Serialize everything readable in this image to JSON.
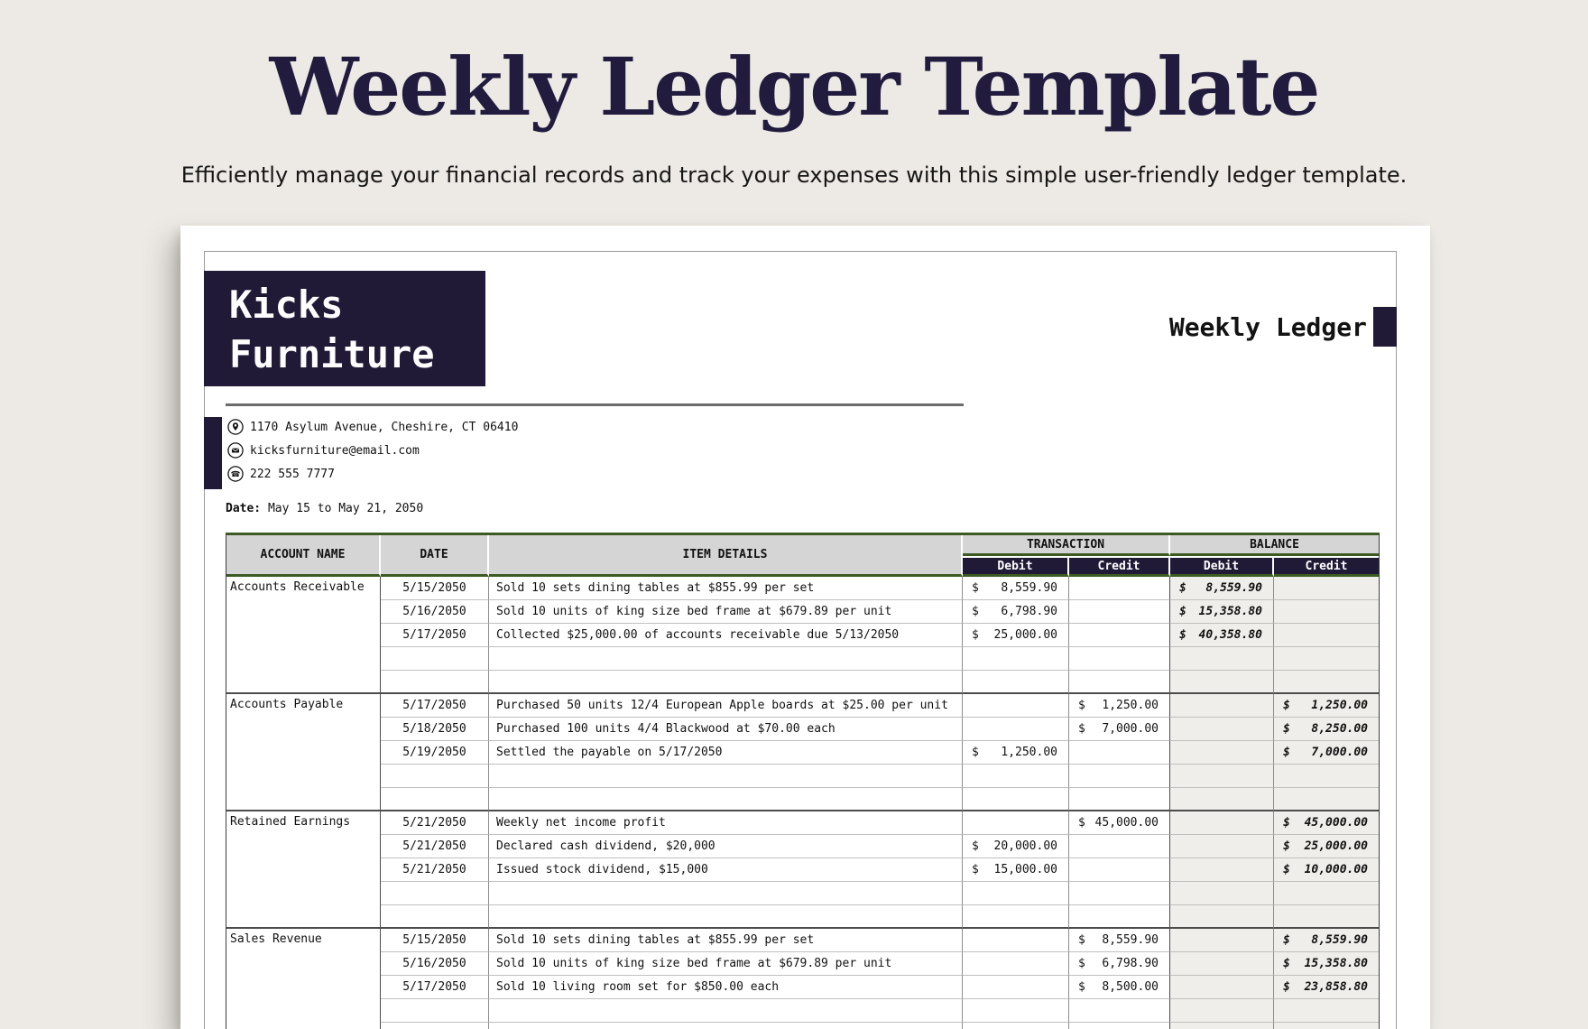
{
  "page": {
    "title": "Weekly Ledger Template",
    "subtitle": "Efficiently manage your financial records and track your expenses with this simple user-friendly ledger template."
  },
  "company": {
    "name_line1": "Kicks",
    "name_line2": "Furniture",
    "doc_label": "Weekly Ledger",
    "address": "1170 Asylum Avenue, Cheshire, CT 06410",
    "email": "kicksfurniture@email.com",
    "phone": "222 555 7777"
  },
  "date_line": {
    "label": "Date:",
    "value": "May 15 to May 21, 2050"
  },
  "colors": {
    "navy": "#201a37",
    "title_navy": "#211b3e",
    "header_gray": "#d5d5d5",
    "table_green": "#3b5b23",
    "balance_gray": "#f0eeea",
    "background": "#edeae5"
  },
  "table": {
    "currency": "$",
    "headers": {
      "account": "ACCOUNT NAME",
      "date": "DATE",
      "item": "ITEM DETAILS",
      "transaction": "TRANSACTION",
      "balance": "BALANCE",
      "debit": "Debit",
      "credit": "Credit"
    },
    "blocks": [
      {
        "account": "Accounts Receivable",
        "rows": [
          {
            "date": "5/15/2050",
            "item": "Sold 10 sets dining tables at $855.99 per set",
            "t_debit": "8,559.90",
            "t_credit": "",
            "b_debit": "8,559.90",
            "b_credit": ""
          },
          {
            "date": "5/16/2050",
            "item": "Sold 10 units of king size bed frame at $679.89 per unit",
            "t_debit": "6,798.90",
            "t_credit": "",
            "b_debit": "15,358.80",
            "b_credit": ""
          },
          {
            "date": "5/17/2050",
            "item": "Collected $25,000.00 of accounts receivable due 5/13/2050",
            "t_debit": "25,000.00",
            "t_credit": "",
            "b_debit": "40,358.80",
            "b_credit": ""
          },
          {
            "date": "",
            "item": "",
            "t_debit": "",
            "t_credit": "",
            "b_debit": "",
            "b_credit": ""
          },
          {
            "date": "",
            "item": "",
            "t_debit": "",
            "t_credit": "",
            "b_debit": "",
            "b_credit": ""
          }
        ]
      },
      {
        "account": "Accounts Payable",
        "rows": [
          {
            "date": "5/17/2050",
            "item": "Purchased 50 units 12/4 European Apple boards at $25.00 per unit",
            "t_debit": "",
            "t_credit": "1,250.00",
            "b_debit": "",
            "b_credit": "1,250.00"
          },
          {
            "date": "5/18/2050",
            "item": "Purchased 100 units 4/4 Blackwood at $70.00 each",
            "t_debit": "",
            "t_credit": "7,000.00",
            "b_debit": "",
            "b_credit": "8,250.00"
          },
          {
            "date": "5/19/2050",
            "item": "Settled the payable on 5/17/2050",
            "t_debit": "1,250.00",
            "t_credit": "",
            "b_debit": "",
            "b_credit": "7,000.00"
          },
          {
            "date": "",
            "item": "",
            "t_debit": "",
            "t_credit": "",
            "b_debit": "",
            "b_credit": ""
          },
          {
            "date": "",
            "item": "",
            "t_debit": "",
            "t_credit": "",
            "b_debit": "",
            "b_credit": ""
          }
        ]
      },
      {
        "account": "Retained Earnings",
        "rows": [
          {
            "date": "5/21/2050",
            "item": "Weekly net income profit",
            "t_debit": "",
            "t_credit": "45,000.00",
            "b_debit": "",
            "b_credit": "45,000.00"
          },
          {
            "date": "5/21/2050",
            "item": "Declared cash dividend, $20,000",
            "t_debit": "20,000.00",
            "t_credit": "",
            "b_debit": "",
            "b_credit": "25,000.00"
          },
          {
            "date": "5/21/2050",
            "item": "Issued stock dividend, $15,000",
            "t_debit": "15,000.00",
            "t_credit": "",
            "b_debit": "",
            "b_credit": "10,000.00"
          },
          {
            "date": "",
            "item": "",
            "t_debit": "",
            "t_credit": "",
            "b_debit": "",
            "b_credit": ""
          },
          {
            "date": "",
            "item": "",
            "t_debit": "",
            "t_credit": "",
            "b_debit": "",
            "b_credit": ""
          }
        ]
      },
      {
        "account": "Sales Revenue",
        "rows": [
          {
            "date": "5/15/2050",
            "item": "Sold 10 sets dining tables at $855.99 per set",
            "t_debit": "",
            "t_credit": "8,559.90",
            "b_debit": "",
            "b_credit": "8,559.90"
          },
          {
            "date": "5/16/2050",
            "item": "Sold 10 units of king size bed frame at $679.89 per unit",
            "t_debit": "",
            "t_credit": "6,798.90",
            "b_debit": "",
            "b_credit": "15,358.80"
          },
          {
            "date": "5/17/2050",
            "item": "Sold 10 living room set for $850.00 each",
            "t_debit": "",
            "t_credit": "8,500.00",
            "b_debit": "",
            "b_credit": "23,858.80"
          },
          {
            "date": "",
            "item": "",
            "t_debit": "",
            "t_credit": "",
            "b_debit": "",
            "b_credit": ""
          },
          {
            "date": "",
            "item": "",
            "t_debit": "",
            "t_credit": "",
            "b_debit": "",
            "b_credit": ""
          }
        ]
      }
    ]
  }
}
